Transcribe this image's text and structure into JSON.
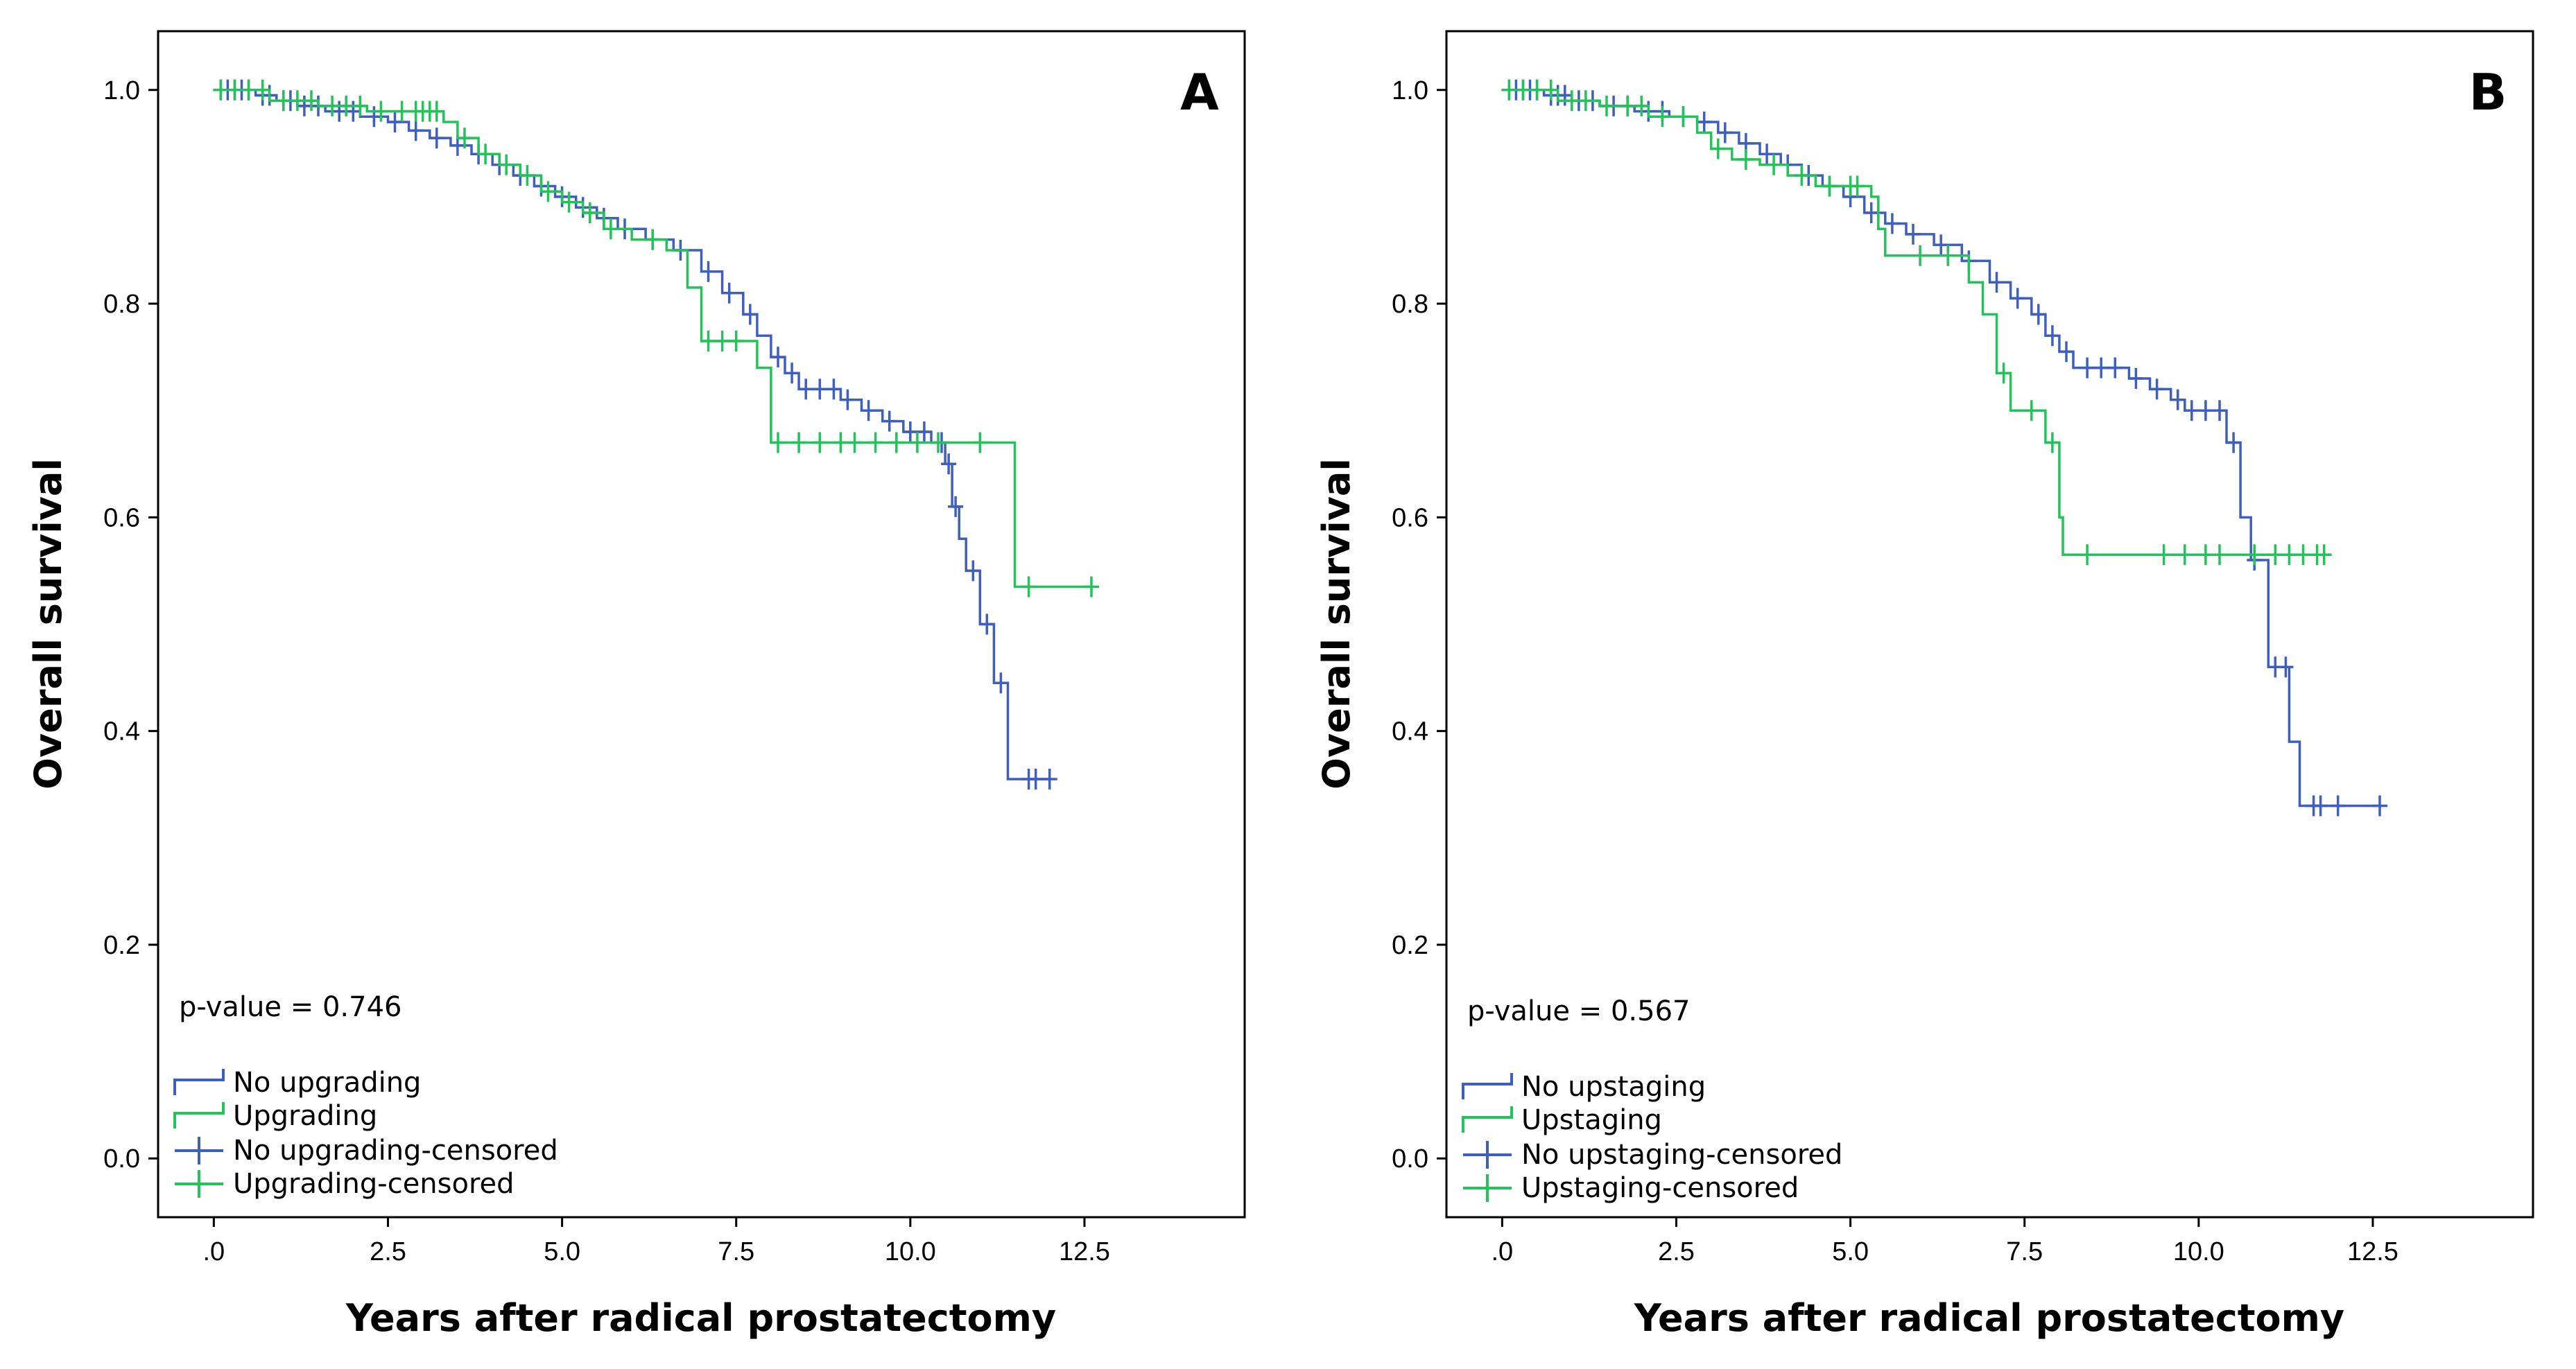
{
  "colors": {
    "series_a": "#3f5fbf",
    "series_b": "#22c45a",
    "axis": "#000000"
  },
  "chart_data": [
    {
      "type": "line",
      "panel_label": "A",
      "title": "",
      "xlabel": "Years after radical prostatectomy",
      "ylabel": "Overall survival",
      "xlim": [
        -0.8,
        14.8
      ],
      "ylim": [
        -0.055,
        1.055
      ],
      "xticks": [
        0,
        2.5,
        5.0,
        7.5,
        10.0,
        12.5
      ],
      "xtick_labels": [
        ".0",
        "2.5",
        "5.0",
        "7.5",
        "10.0",
        "12.5"
      ],
      "yticks": [
        0.0,
        0.2,
        0.4,
        0.6,
        0.8,
        1.0
      ],
      "ytick_labels": [
        "0.0",
        "0.2",
        "0.4",
        "0.6",
        "0.8",
        "1.0"
      ],
      "annotation": "p-value = 0.746",
      "legend": [
        "No upgrading",
        "Upgrading",
        "No upgrading-censored",
        "Upgrading-censored"
      ],
      "series": [
        {
          "name": "No upgrading",
          "color": "#3f5fbf",
          "steps": [
            [
              0,
              1.0
            ],
            [
              0.6,
              0.995
            ],
            [
              0.9,
              0.99
            ],
            [
              1.2,
              0.985
            ],
            [
              1.6,
              0.98
            ],
            [
              2.1,
              0.975
            ],
            [
              2.5,
              0.97
            ],
            [
              2.8,
              0.962
            ],
            [
              3.1,
              0.955
            ],
            [
              3.4,
              0.948
            ],
            [
              3.7,
              0.94
            ],
            [
              4.0,
              0.93
            ],
            [
              4.3,
              0.92
            ],
            [
              4.6,
              0.91
            ],
            [
              4.9,
              0.9
            ],
            [
              5.2,
              0.89
            ],
            [
              5.5,
              0.88
            ],
            [
              5.8,
              0.87
            ],
            [
              6.2,
              0.86
            ],
            [
              6.6,
              0.85
            ],
            [
              7.0,
              0.83
            ],
            [
              7.3,
              0.81
            ],
            [
              7.6,
              0.79
            ],
            [
              7.8,
              0.77
            ],
            [
              8.0,
              0.75
            ],
            [
              8.2,
              0.735
            ],
            [
              8.4,
              0.72
            ],
            [
              9.0,
              0.71
            ],
            [
              9.3,
              0.7
            ],
            [
              9.6,
              0.69
            ],
            [
              9.9,
              0.68
            ],
            [
              10.3,
              0.67
            ],
            [
              10.5,
              0.65
            ],
            [
              10.6,
              0.61
            ],
            [
              10.7,
              0.58
            ],
            [
              10.8,
              0.55
            ],
            [
              11.0,
              0.5
            ],
            [
              11.2,
              0.445
            ],
            [
              11.4,
              0.355
            ],
            [
              12.0,
              0.355
            ]
          ],
          "censor_x": [
            0.1,
            0.2,
            0.3,
            0.4,
            0.5,
            0.7,
            0.8,
            1.0,
            1.1,
            1.3,
            1.5,
            1.8,
            2.0,
            2.3,
            2.6,
            2.9,
            3.2,
            3.5,
            3.8,
            4.1,
            4.4,
            4.7,
            5.0,
            5.3,
            5.6,
            5.9,
            6.3,
            6.7,
            7.1,
            7.4,
            7.7,
            8.1,
            8.3,
            8.5,
            8.7,
            8.9,
            9.1,
            9.4,
            9.7,
            10.0,
            10.2,
            10.45,
            10.55,
            10.65,
            10.9,
            11.1,
            11.3,
            11.7,
            11.8,
            12.0
          ]
        },
        {
          "name": "Upgrading",
          "color": "#22c45a",
          "steps": [
            [
              0,
              1.0
            ],
            [
              0.8,
              0.99
            ],
            [
              1.5,
              0.985
            ],
            [
              2.2,
              0.98
            ],
            [
              3.3,
              0.97
            ],
            [
              3.5,
              0.955
            ],
            [
              3.8,
              0.94
            ],
            [
              4.1,
              0.93
            ],
            [
              4.4,
              0.92
            ],
            [
              4.7,
              0.905
            ],
            [
              5.0,
              0.895
            ],
            [
              5.3,
              0.885
            ],
            [
              5.6,
              0.87
            ],
            [
              6.0,
              0.86
            ],
            [
              6.5,
              0.85
            ],
            [
              6.8,
              0.815
            ],
            [
              7.0,
              0.765
            ],
            [
              7.6,
              0.765
            ],
            [
              7.8,
              0.74
            ],
            [
              8.0,
              0.67
            ],
            [
              11.4,
              0.67
            ],
            [
              11.5,
              0.535
            ],
            [
              12.6,
              0.535
            ]
          ],
          "censor_x": [
            0.1,
            0.3,
            0.5,
            0.7,
            1.0,
            1.2,
            1.4,
            1.7,
            1.9,
            2.1,
            2.4,
            2.7,
            2.9,
            3.0,
            3.1,
            3.2,
            3.6,
            3.9,
            4.2,
            4.5,
            4.8,
            5.1,
            5.4,
            5.7,
            6.3,
            7.1,
            7.3,
            7.5,
            8.1,
            8.4,
            8.7,
            9.0,
            9.2,
            9.5,
            9.8,
            10.1,
            10.4,
            11.0,
            11.7,
            12.6
          ]
        }
      ]
    },
    {
      "type": "line",
      "panel_label": "B",
      "title": "",
      "xlabel": "Years after radical prostatectomy",
      "ylabel": "Overall survival",
      "xlim": [
        -0.8,
        14.8
      ],
      "ylim": [
        -0.055,
        1.055
      ],
      "xticks": [
        0,
        2.5,
        5.0,
        7.5,
        10.0,
        12.5
      ],
      "xtick_labels": [
        ".0",
        "2.5",
        "5.0",
        "7.5",
        "10.0",
        "12.5"
      ],
      "yticks": [
        0.0,
        0.2,
        0.4,
        0.6,
        0.8,
        1.0
      ],
      "ytick_labels": [
        "0.0",
        "0.2",
        "0.4",
        "0.6",
        "0.8",
        "1.0"
      ],
      "annotation": "p-value = 0.567",
      "legend": [
        "No upstaging",
        "Upstaging",
        "No upstaging-censored",
        "Upstaging-censored"
      ],
      "series": [
        {
          "name": "No upstaging",
          "color": "#3f5fbf",
          "steps": [
            [
              0,
              1.0
            ],
            [
              0.6,
              0.995
            ],
            [
              1.0,
              0.99
            ],
            [
              1.4,
              0.985
            ],
            [
              1.9,
              0.98
            ],
            [
              2.4,
              0.975
            ],
            [
              2.8,
              0.97
            ],
            [
              3.1,
              0.96
            ],
            [
              3.4,
              0.95
            ],
            [
              3.7,
              0.94
            ],
            [
              4.0,
              0.93
            ],
            [
              4.3,
              0.92
            ],
            [
              4.6,
              0.91
            ],
            [
              4.9,
              0.9
            ],
            [
              5.2,
              0.885
            ],
            [
              5.5,
              0.875
            ],
            [
              5.8,
              0.865
            ],
            [
              6.2,
              0.855
            ],
            [
              6.6,
              0.84
            ],
            [
              7.0,
              0.82
            ],
            [
              7.3,
              0.805
            ],
            [
              7.6,
              0.79
            ],
            [
              7.8,
              0.77
            ],
            [
              8.0,
              0.755
            ],
            [
              8.2,
              0.74
            ],
            [
              9.0,
              0.73
            ],
            [
              9.3,
              0.72
            ],
            [
              9.6,
              0.71
            ],
            [
              9.8,
              0.7
            ],
            [
              10.4,
              0.67
            ],
            [
              10.6,
              0.6
            ],
            [
              10.75,
              0.56
            ],
            [
              11.0,
              0.46
            ],
            [
              11.3,
              0.39
            ],
            [
              11.45,
              0.33
            ],
            [
              12.6,
              0.33
            ]
          ],
          "censor_x": [
            0.1,
            0.2,
            0.3,
            0.4,
            0.5,
            0.7,
            0.8,
            0.9,
            1.1,
            1.3,
            1.6,
            1.8,
            2.1,
            2.3,
            2.6,
            2.9,
            3.2,
            3.5,
            3.8,
            4.1,
            4.4,
            4.7,
            5.0,
            5.3,
            5.6,
            5.9,
            6.3,
            6.7,
            7.1,
            7.4,
            7.7,
            7.9,
            8.1,
            8.4,
            8.6,
            8.8,
            9.1,
            9.4,
            9.7,
            9.9,
            10.1,
            10.3,
            10.5,
            10.8,
            11.1,
            11.25,
            11.65,
            11.75,
            12.0,
            12.6
          ]
        },
        {
          "name": "Upstaging",
          "color": "#22c45a",
          "steps": [
            [
              0,
              1.0
            ],
            [
              0.8,
              0.99
            ],
            [
              1.4,
              0.985
            ],
            [
              2.1,
              0.975
            ],
            [
              2.8,
              0.96
            ],
            [
              3.0,
              0.945
            ],
            [
              3.3,
              0.935
            ],
            [
              3.7,
              0.93
            ],
            [
              4.1,
              0.92
            ],
            [
              4.5,
              0.91
            ],
            [
              5.3,
              0.9
            ],
            [
              5.4,
              0.87
            ],
            [
              5.5,
              0.845
            ],
            [
              6.6,
              0.845
            ],
            [
              6.7,
              0.82
            ],
            [
              6.9,
              0.79
            ],
            [
              7.1,
              0.735
            ],
            [
              7.3,
              0.7
            ],
            [
              7.7,
              0.7
            ],
            [
              7.8,
              0.67
            ],
            [
              8.0,
              0.6
            ],
            [
              8.05,
              0.565
            ],
            [
              11.8,
              0.565
            ]
          ],
          "censor_x": [
            0.1,
            0.3,
            0.5,
            0.7,
            1.0,
            1.2,
            1.5,
            1.8,
            2.0,
            2.3,
            2.6,
            3.1,
            3.5,
            3.9,
            4.3,
            4.7,
            5.0,
            5.1,
            6.0,
            6.4,
            7.2,
            7.6,
            7.9,
            8.4,
            9.5,
            9.8,
            10.1,
            10.3,
            10.8,
            11.1,
            11.3,
            11.5,
            11.7,
            11.8
          ]
        }
      ]
    }
  ]
}
